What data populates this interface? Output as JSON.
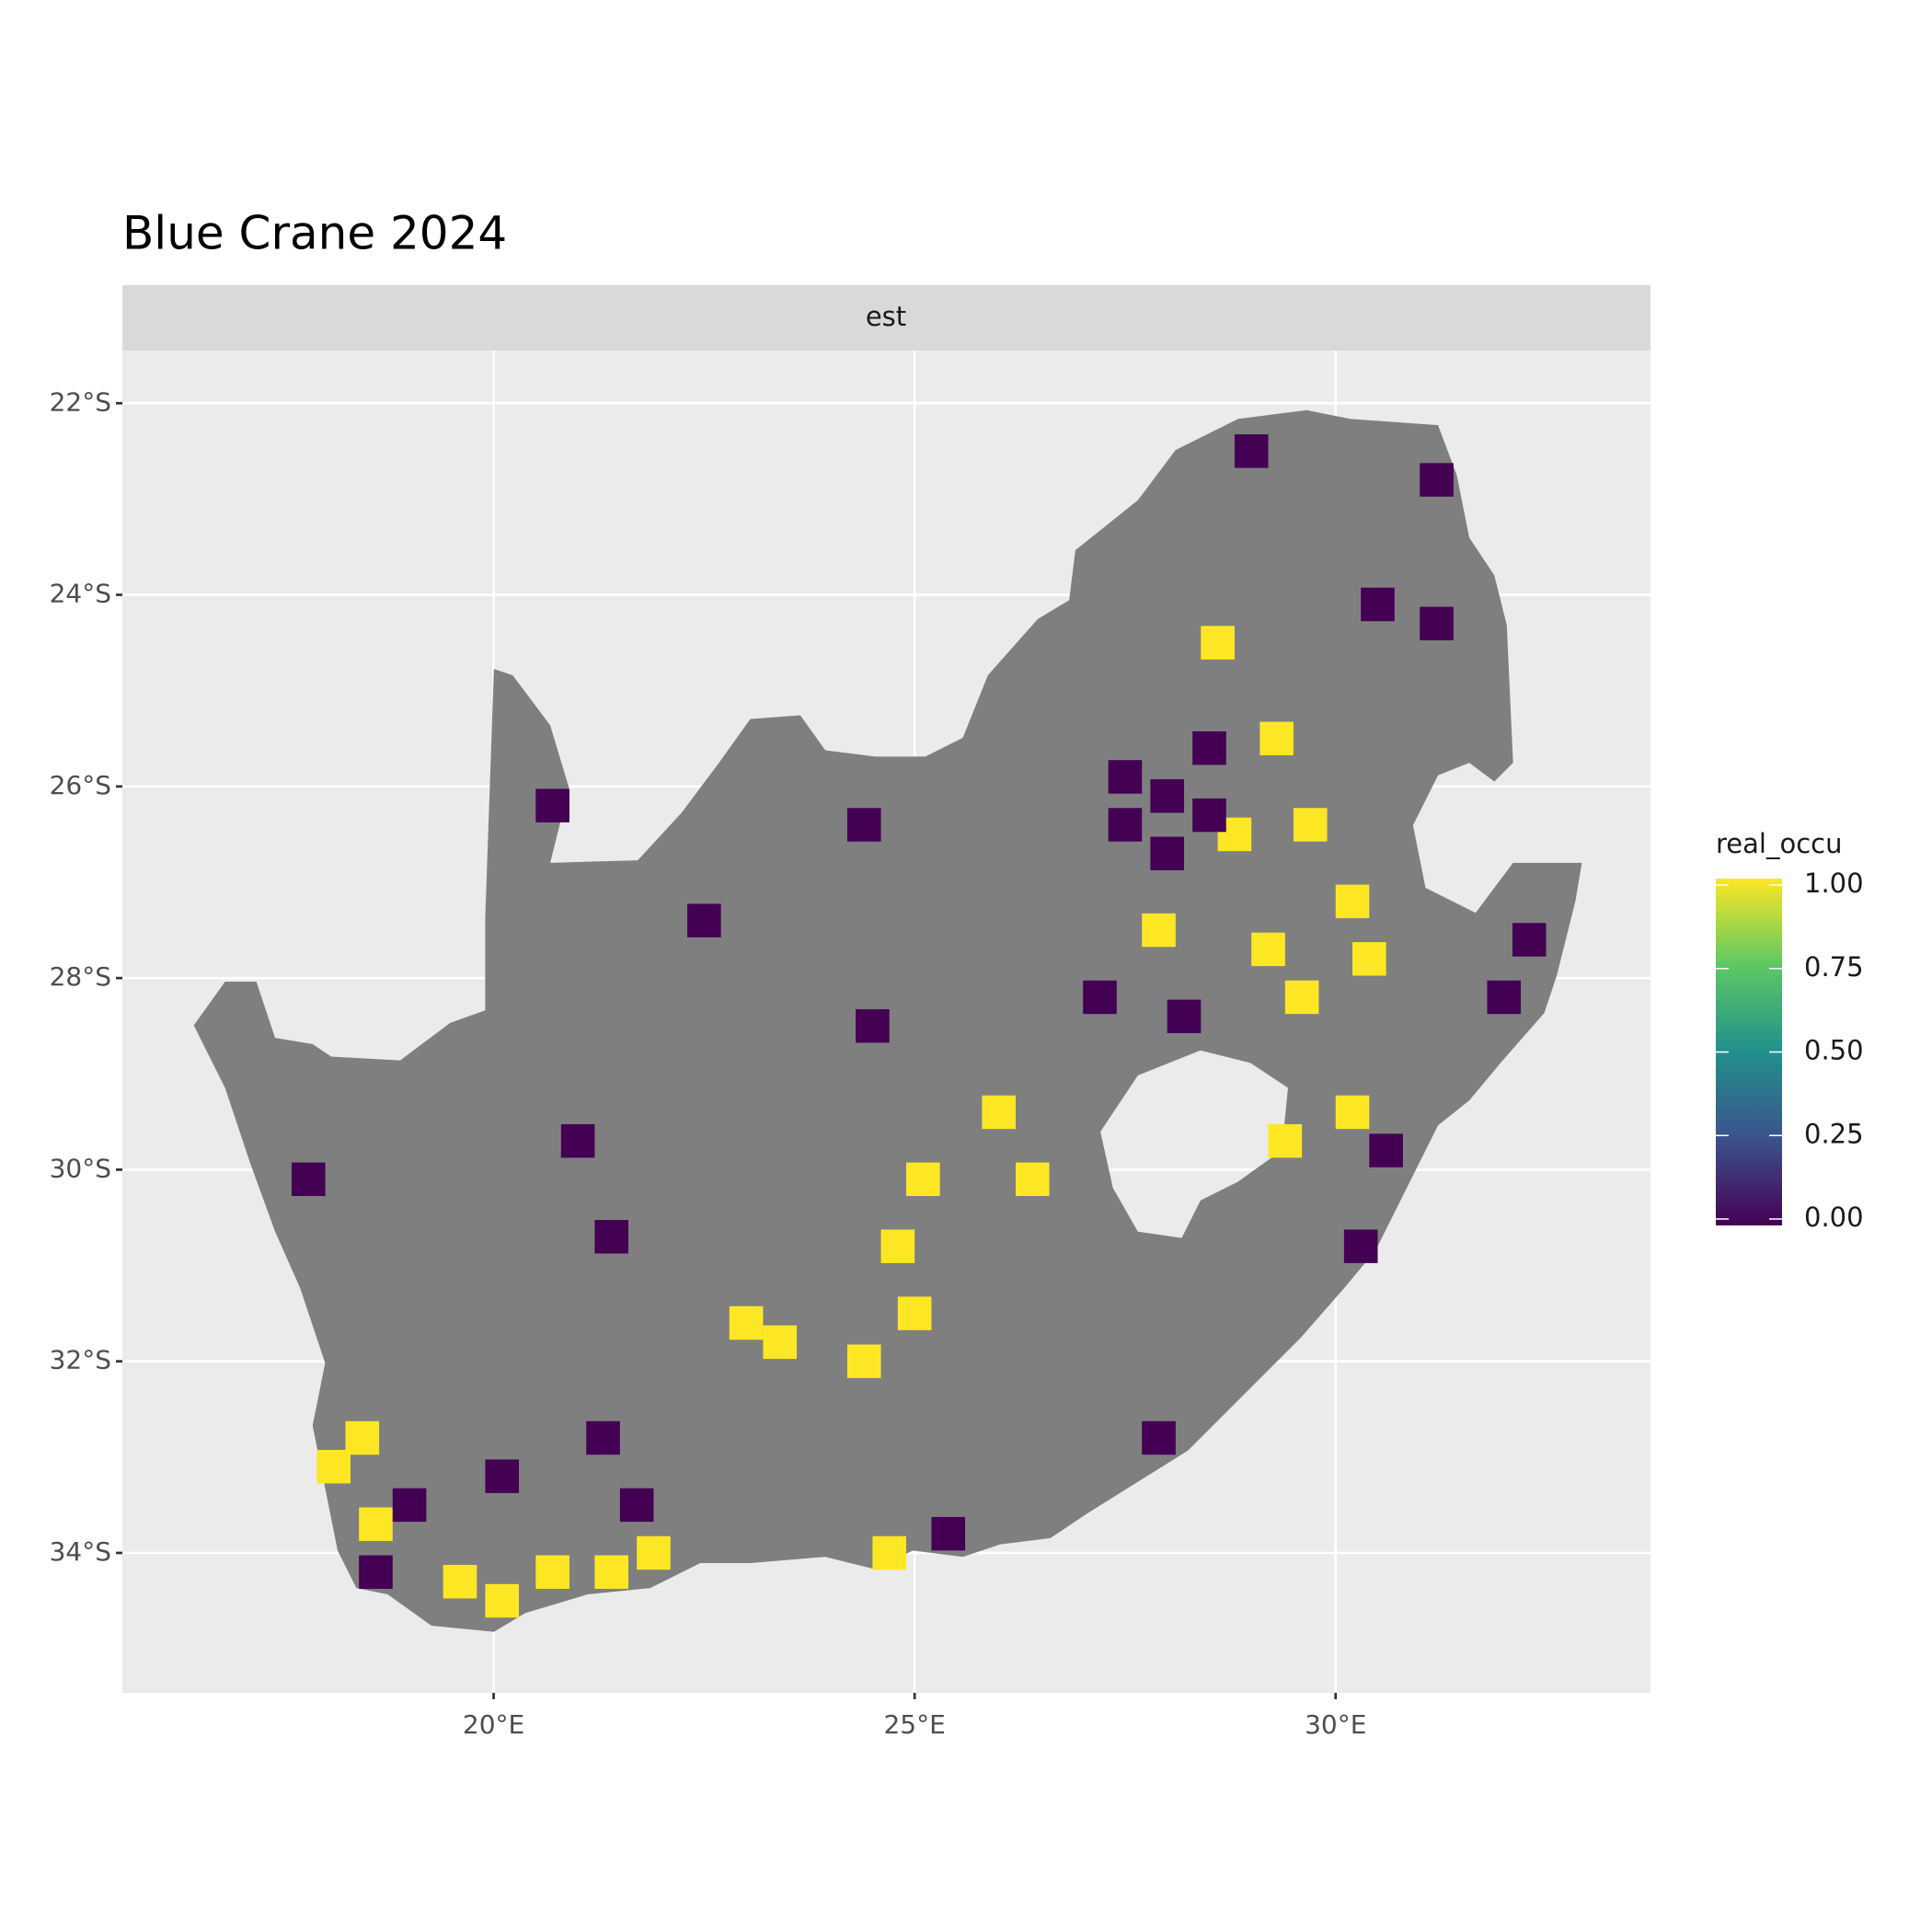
{
  "chart_data": {
    "type": "raster",
    "title": "Blue Crane 2024",
    "facet": "est",
    "legend_title": "real_occu",
    "xlim": [
      15.59,
      33.74
    ],
    "ylim": [
      -35.46,
      -21.45
    ],
    "xticks": [
      {
        "value": 20,
        "label": "20°E"
      },
      {
        "value": 25,
        "label": "25°E"
      },
      {
        "value": 30,
        "label": "30°E"
      }
    ],
    "yticks": [
      {
        "value": -22,
        "label": "22°S"
      },
      {
        "value": -24,
        "label": "24°S"
      },
      {
        "value": -26,
        "label": "26°S"
      },
      {
        "value": -28,
        "label": "28°S"
      },
      {
        "value": -30,
        "label": "30°S"
      },
      {
        "value": -32,
        "label": "32°S"
      },
      {
        "value": -34,
        "label": "34°S"
      }
    ],
    "grid": true,
    "legend_position": "right",
    "clim": [
      0,
      1
    ],
    "cticks": [
      {
        "value": 0,
        "label": "0.00"
      },
      {
        "value": 0.25,
        "label": "0.25"
      },
      {
        "value": 0.5,
        "label": "0.50"
      },
      {
        "value": 0.75,
        "label": "0.75"
      },
      {
        "value": 1,
        "label": "1.00"
      }
    ],
    "colormap": [
      "#440154",
      "#3B528B",
      "#21908C",
      "#5DC863",
      "#FDE725"
    ],
    "land_color": "#7f7f7f",
    "x": [
      18.6,
      18.44,
      18.1,
      19.6,
      20.1,
      20.7,
      21.4,
      21.9,
      24.7,
      23.0,
      24.4,
      25.0,
      24.8,
      25.1,
      26.4,
      26.0,
      23.4,
      27.9,
      28.8,
      30.2,
      29.7,
      29.2,
      29.6,
      30.2,
      29.4,
      30.4,
      28.6,
      29.3,
      28.0,
      27.5,
      28.5,
      27.5,
      28.5,
      28.0,
      31.2,
      30.5,
      31.2,
      29.0,
      32.3,
      32.0,
      30.6,
      30.3,
      27.9,
      25.4,
      18.6,
      21.7,
      21.3,
      19.0,
      20.1,
      22.5,
      21.4,
      17.8,
      21.0,
      24.5,
      28.2,
      24.4,
      20.7,
      27.2
    ],
    "y": [
      -33.7,
      -32.8,
      -33.1,
      -34.3,
      -34.5,
      -34.2,
      -34.2,
      -34.0,
      -34.0,
      -31.6,
      -32.0,
      -31.5,
      -30.8,
      -30.1,
      -30.1,
      -29.4,
      -31.8,
      -27.5,
      -26.5,
      -27.2,
      -26.4,
      -27.7,
      -28.2,
      -29.4,
      -29.7,
      -27.8,
      -24.5,
      -25.5,
      -26.1,
      -26.4,
      -25.6,
      -25.9,
      -26.3,
      -26.7,
      -24.3,
      -24.1,
      -22.8,
      -22.5,
      -27.6,
      -28.2,
      -29.8,
      -30.8,
      -32.8,
      -33.8,
      -34.2,
      -33.5,
      -32.8,
      -33.5,
      -33.2,
      -27.4,
      -30.7,
      -30.1,
      -29.7,
      -28.5,
      -28.4,
      -26.4,
      -26.2,
      -28.2
    ],
    "values": [
      1,
      1,
      1,
      1,
      1,
      1,
      1,
      1,
      1,
      1,
      1,
      1,
      1,
      1,
      1,
      1,
      1,
      1,
      1,
      1,
      1,
      1,
      1,
      1,
      1,
      1,
      1,
      1,
      0,
      0,
      0,
      0,
      0,
      0,
      0,
      0,
      0,
      0,
      0,
      0,
      0,
      0,
      0,
      0,
      0,
      0,
      0,
      0,
      0,
      0,
      0,
      0,
      0,
      0,
      0,
      0,
      0,
      0
    ]
  }
}
